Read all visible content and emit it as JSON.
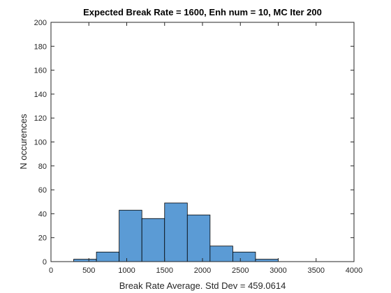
{
  "chart_data": {
    "type": "bar",
    "title": "Expected Break Rate = 1600, Enh num = 10, MC Iter 200",
    "xlabel": "Break Rate Average. Std Dev = 459.0614",
    "ylabel": "N occurences",
    "xlim": [
      0,
      4000
    ],
    "ylim": [
      0,
      200
    ],
    "xticks": [
      0,
      500,
      1000,
      1500,
      2000,
      2500,
      3000,
      3500,
      4000
    ],
    "yticks": [
      0,
      20,
      40,
      60,
      80,
      100,
      120,
      140,
      160,
      180,
      200
    ],
    "bin_width": 300,
    "bins": [
      {
        "start": 300,
        "end": 600,
        "count": 2
      },
      {
        "start": 600,
        "end": 900,
        "count": 8
      },
      {
        "start": 900,
        "end": 1200,
        "count": 43
      },
      {
        "start": 1200,
        "end": 1500,
        "count": 36
      },
      {
        "start": 1500,
        "end": 1800,
        "count": 49
      },
      {
        "start": 1800,
        "end": 2100,
        "count": 39
      },
      {
        "start": 2100,
        "end": 2400,
        "count": 13
      },
      {
        "start": 2400,
        "end": 2700,
        "count": 8
      },
      {
        "start": 2700,
        "end": 3000,
        "count": 2
      }
    ],
    "bar_color": "#5B9BD5",
    "edge_color": "#000000",
    "grid": false,
    "box": true
  }
}
